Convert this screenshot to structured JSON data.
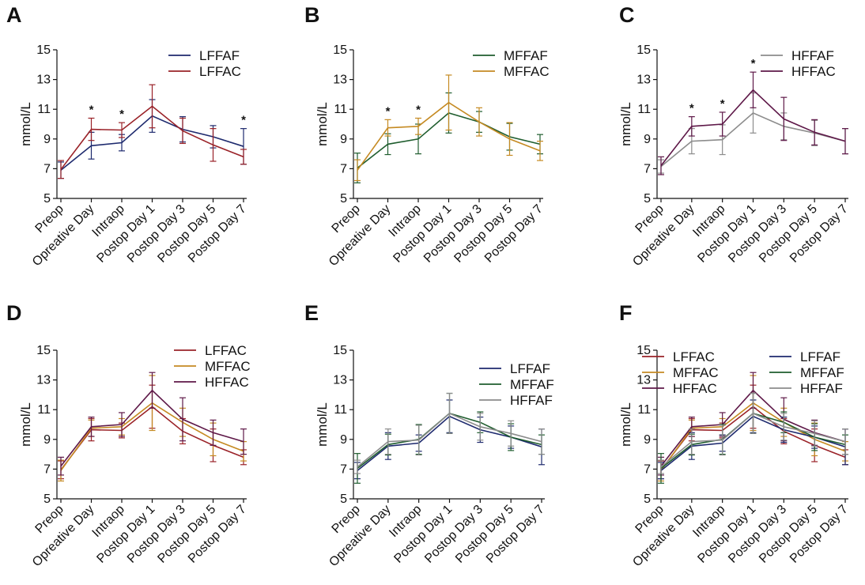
{
  "figure": {
    "y_unit": "mmol/L"
  },
  "colors": {
    "LFFAF": "#1e2a6e",
    "LFFAC": "#9a2228",
    "MFFAF": "#1f5d2e",
    "MFFAC": "#c58a22",
    "HFFAF": "#8c8c8c",
    "HFFAC": "#5e1848"
  },
  "chart_data": [
    {
      "panel": "A",
      "type": "line",
      "ylabel": "mmol/L",
      "ylim": [
        5,
        15
      ],
      "yticks": [
        5,
        7,
        9,
        11,
        13,
        15
      ],
      "categories": [
        "Preop",
        "Opreative Day",
        "Intraop",
        "Postop Day 1",
        "Postop Day 3",
        "Postop Day 5",
        "Postop Day 7"
      ],
      "legend_columns": 1,
      "series": [
        {
          "name": "LFFAF",
          "values": [
            6.9,
            8.55,
            8.75,
            10.55,
            9.65,
            9.15,
            8.5
          ],
          "errors": [
            0.55,
            0.9,
            0.55,
            1.1,
            0.85,
            0.75,
            1.2
          ]
        },
        {
          "name": "LFFAC",
          "values": [
            6.95,
            9.65,
            9.6,
            11.2,
            9.55,
            8.6,
            7.8
          ],
          "errors": [
            0.6,
            0.75,
            0.5,
            1.45,
            0.85,
            1.1,
            0.5
          ]
        }
      ],
      "significance": [
        {
          "category": "Opreative Day",
          "label": "*"
        },
        {
          "category": "Intraop",
          "label": "*"
        },
        {
          "category": "Postop Day 7",
          "label": "*"
        }
      ]
    },
    {
      "panel": "B",
      "type": "line",
      "ylabel": "mmol/L",
      "ylim": [
        5,
        15
      ],
      "yticks": [
        5,
        7,
        9,
        11,
        13,
        15
      ],
      "categories": [
        "Preop",
        "Opreative Day",
        "Intraop",
        "Postop Day 1",
        "Postop Day 3",
        "Postop Day 5",
        "Postop Day 7"
      ],
      "legend_columns": 1,
      "series": [
        {
          "name": "MFFAF",
          "values": [
            7.05,
            8.65,
            9.0,
            10.75,
            10.15,
            9.15,
            8.65
          ],
          "errors": [
            1.0,
            0.7,
            1.0,
            1.35,
            0.7,
            0.9,
            0.65
          ]
        },
        {
          "name": "MFFAC",
          "values": [
            6.9,
            9.75,
            9.85,
            11.45,
            10.15,
            9.0,
            8.2
          ],
          "errors": [
            0.7,
            0.55,
            0.55,
            1.85,
            0.95,
            1.1,
            0.65
          ]
        }
      ],
      "significance": [
        {
          "category": "Opreative Day",
          "label": "*"
        },
        {
          "category": "Intraop",
          "label": "*"
        }
      ]
    },
    {
      "panel": "C",
      "type": "line",
      "ylabel": "mmol/L",
      "ylim": [
        5,
        15
      ],
      "yticks": [
        5,
        7,
        9,
        11,
        13,
        15
      ],
      "categories": [
        "Preop",
        "Opreative Day",
        "Intraop",
        "Postop Day 1",
        "Postop Day 3",
        "Postop Day 5",
        "Postop Day 7"
      ],
      "legend_columns": 1,
      "series": [
        {
          "name": "HFFAF",
          "values": [
            7.15,
            8.85,
            8.95,
            10.75,
            9.85,
            9.4,
            8.85
          ],
          "errors": [
            0.45,
            0.85,
            1.0,
            1.35,
            0.9,
            0.85,
            0.85
          ]
        },
        {
          "name": "HFFAC",
          "values": [
            7.2,
            9.85,
            10.0,
            12.3,
            10.35,
            9.45,
            8.85
          ],
          "errors": [
            0.6,
            0.65,
            0.8,
            1.2,
            1.45,
            0.85,
            0.85
          ]
        }
      ],
      "significance": [
        {
          "category": "Opreative Day",
          "label": "*"
        },
        {
          "category": "Intraop",
          "label": "*"
        },
        {
          "category": "Postop Day 1",
          "label": "*"
        }
      ]
    },
    {
      "panel": "D",
      "type": "line",
      "ylabel": "mmol/L",
      "ylim": [
        5,
        15
      ],
      "yticks": [
        5,
        7,
        9,
        11,
        13,
        15
      ],
      "categories": [
        "Preop",
        "Opreative Day",
        "Intraop",
        "Postop Day 1",
        "Postop Day 3",
        "Postop Day 5",
        "Postop Day 7"
      ],
      "legend_columns": 1,
      "series": [
        {
          "name": "LFFAC",
          "values": [
            6.95,
            9.65,
            9.6,
            11.2,
            9.55,
            8.6,
            7.8
          ],
          "errors": [
            0.6,
            0.75,
            0.5,
            1.45,
            0.85,
            1.1,
            0.5
          ]
        },
        {
          "name": "MFFAC",
          "values": [
            6.9,
            9.75,
            9.85,
            11.45,
            10.15,
            9.0,
            8.2
          ],
          "errors": [
            0.7,
            0.55,
            0.55,
            1.85,
            0.95,
            1.1,
            0.65
          ]
        },
        {
          "name": "HFFAC",
          "values": [
            7.2,
            9.85,
            10.0,
            12.3,
            10.35,
            9.45,
            8.85
          ],
          "errors": [
            0.6,
            0.65,
            0.8,
            1.2,
            1.45,
            0.85,
            0.85
          ]
        }
      ],
      "significance": []
    },
    {
      "panel": "E",
      "type": "line",
      "ylabel": "mmol/L",
      "ylim": [
        5,
        15
      ],
      "yticks": [
        5,
        7,
        9,
        11,
        13,
        15
      ],
      "categories": [
        "Preop",
        "Opreative Day",
        "Intraop",
        "Postop Day 1",
        "Postop Day 3",
        "Postop Day 5",
        "Postop Day 7"
      ],
      "legend_columns": 1,
      "series": [
        {
          "name": "LFFAF",
          "values": [
            6.9,
            8.55,
            8.75,
            10.55,
            9.65,
            9.15,
            8.5
          ],
          "errors": [
            0.55,
            0.9,
            0.55,
            1.1,
            0.85,
            0.75,
            1.2
          ]
        },
        {
          "name": "MFFAF",
          "values": [
            7.05,
            8.65,
            9.0,
            10.75,
            10.15,
            9.15,
            8.65
          ],
          "errors": [
            1.0,
            0.7,
            1.0,
            1.35,
            0.7,
            0.9,
            0.65
          ]
        },
        {
          "name": "HFFAF",
          "values": [
            7.15,
            8.85,
            8.95,
            10.75,
            9.85,
            9.4,
            8.85
          ],
          "errors": [
            0.45,
            0.85,
            1.0,
            1.35,
            0.9,
            0.85,
            0.85
          ]
        }
      ],
      "significance": []
    },
    {
      "panel": "F",
      "type": "line",
      "ylabel": "mmol/L",
      "ylim": [
        5,
        15
      ],
      "yticks": [
        5,
        7,
        9,
        11,
        13,
        15
      ],
      "categories": [
        "Preop",
        "Opreative Day",
        "Intraop",
        "Postop Day 1",
        "Postop Day 3",
        "Postop Day 5",
        "Postop Day 7"
      ],
      "legend_columns": 2,
      "series": [
        {
          "name": "LFFAC",
          "values": [
            6.95,
            9.65,
            9.6,
            11.2,
            9.55,
            8.6,
            7.8
          ],
          "errors": [
            0.6,
            0.75,
            0.5,
            1.45,
            0.85,
            1.1,
            0.5
          ]
        },
        {
          "name": "MFFAC",
          "values": [
            6.9,
            9.75,
            9.85,
            11.45,
            10.15,
            9.0,
            8.2
          ],
          "errors": [
            0.7,
            0.55,
            0.55,
            1.85,
            0.95,
            1.1,
            0.65
          ]
        },
        {
          "name": "HFFAC",
          "values": [
            7.2,
            9.85,
            10.0,
            12.3,
            10.35,
            9.45,
            8.85
          ],
          "errors": [
            0.6,
            0.65,
            0.8,
            1.2,
            1.45,
            0.85,
            0.85
          ]
        },
        {
          "name": "LFFAF",
          "values": [
            6.9,
            8.55,
            8.75,
            10.55,
            9.65,
            9.15,
            8.5
          ],
          "errors": [
            0.55,
            0.9,
            0.55,
            1.1,
            0.85,
            0.75,
            1.2
          ]
        },
        {
          "name": "MFFAF",
          "values": [
            7.05,
            8.65,
            9.0,
            10.75,
            10.15,
            9.15,
            8.65
          ],
          "errors": [
            1.0,
            0.7,
            1.0,
            1.35,
            0.7,
            0.9,
            0.65
          ]
        },
        {
          "name": "HFFAF",
          "values": [
            7.15,
            8.85,
            8.95,
            10.75,
            9.85,
            9.4,
            8.85
          ],
          "errors": [
            0.45,
            0.85,
            1.0,
            1.35,
            0.9,
            0.85,
            0.85
          ]
        }
      ],
      "significance": []
    }
  ]
}
